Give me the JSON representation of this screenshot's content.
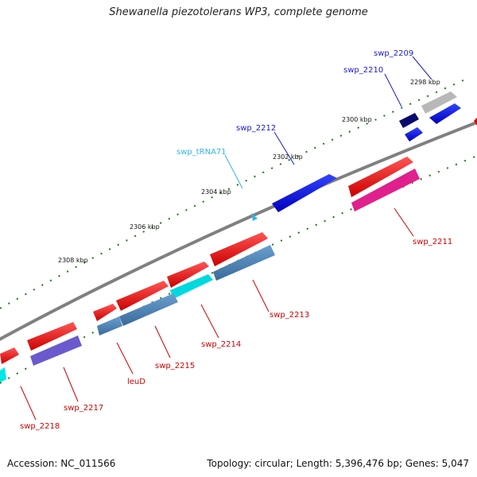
{
  "title": "Shewanella piezotolerans WP3, complete genome",
  "accession": "Accession: NC_011566",
  "topology": "Topology: circular; Length: 5,396,476 bp; Genes: 5,047",
  "ticks": [
    {
      "label": "2298 kbp"
    },
    {
      "label": "2300 kbp"
    },
    {
      "label": "2302 kbp"
    },
    {
      "label": "2304 kbp"
    },
    {
      "label": "2306 kbp"
    },
    {
      "label": "2308 kbp"
    }
  ],
  "gene_labels": [
    {
      "name": "swp_2209",
      "color": "#1a1acc"
    },
    {
      "name": "swp_2210",
      "color": "#1a1acc"
    },
    {
      "name": "swp_2212",
      "color": "#1a1acc"
    },
    {
      "name": "swp_tRNA71",
      "color": "#33b5e5"
    },
    {
      "name": "swp_2211",
      "color": "#cc0000"
    },
    {
      "name": "swp_2213",
      "color": "#cc0000"
    },
    {
      "name": "swp_2214",
      "color": "#cc0000"
    },
    {
      "name": "swp_2215",
      "color": "#cc0000"
    },
    {
      "name": "leuD",
      "color": "#cc0000"
    },
    {
      "name": "swp_2217",
      "color": "#cc0000"
    },
    {
      "name": "swp_2218",
      "color": "#cc0000"
    }
  ],
  "colors": {
    "backbone": "#808080",
    "forward": "#e60000",
    "reverse_blue": "#0000dd",
    "steel": "#4a7fb5",
    "magenta": "#e0208c",
    "purple": "#6a5acd",
    "cyan": "#00e5e5",
    "navy": "#0a0a6e",
    "gray_gene": "#b8b8b8",
    "tick_green": "#1a7a1a"
  }
}
